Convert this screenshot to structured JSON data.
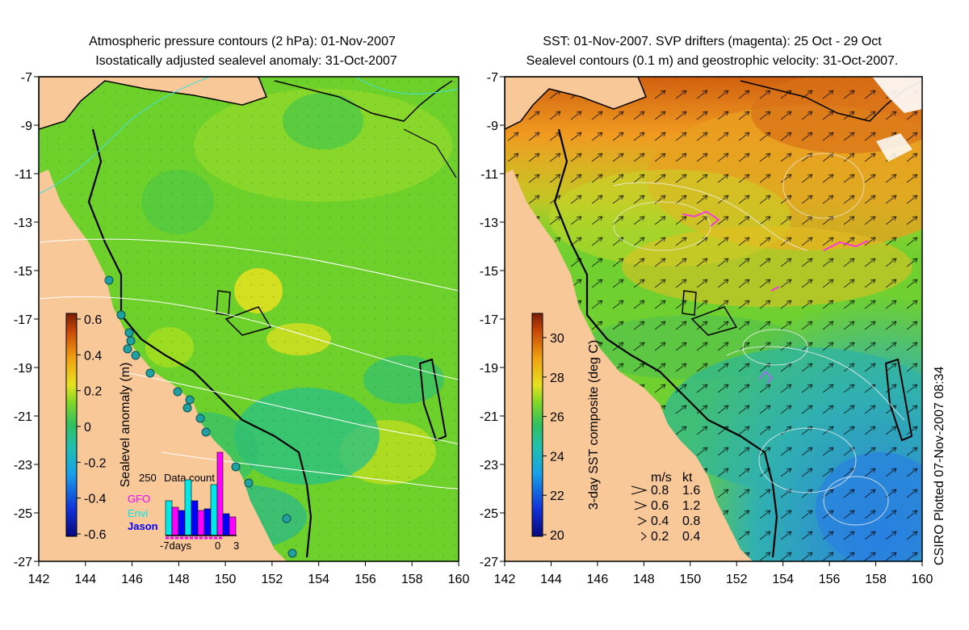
{
  "left_panel": {
    "title_line1": "Atmospheric pressure contours (2 hPa): 01-Nov-2007",
    "title_line2": "Isostatically adjusted sealevel anomaly: 31-Oct-2007",
    "colorbar": {
      "label": "Sealevel anomaly (m)",
      "ticks": [
        "0.6",
        "0.4",
        "0.2",
        "0",
        "-0.2",
        "-0.4",
        "-0.6"
      ],
      "colors": [
        "#08087a",
        "#1030d8",
        "#18a0e8",
        "#20c0b0",
        "#30c060",
        "#60d030",
        "#a8e020",
        "#e8e020",
        "#f0b010",
        "#e07010",
        "#b83808",
        "#7a1c06"
      ]
    },
    "inset": {
      "title": "Data count",
      "y_tick": "250",
      "x_labels": [
        "-7days",
        "0",
        "3"
      ],
      "legend": [
        {
          "name": "GFO",
          "color": "#ff00ff"
        },
        {
          "name": "Envi",
          "color": "#00e8e8"
        },
        {
          "name": "Jason",
          "color": "#0000ff"
        }
      ]
    }
  },
  "right_panel": {
    "title_line1": "SST: 01-Nov-2007. SVP drifters (magenta): 25 Oct - 29 Oct",
    "title_line2": "Sealevel contours (0.1 m) and geostrophic velocity: 31-Oct-2007.",
    "colorbar": {
      "label": "3-day SST composite (deg C)",
      "ticks": [
        "30",
        "28",
        "26",
        "24",
        "22",
        "20"
      ],
      "colors": [
        "#08087a",
        "#1030d8",
        "#18a0e8",
        "#20c0b0",
        "#30c060",
        "#60d030",
        "#a8e020",
        "#e8e020",
        "#f0b010",
        "#e07010",
        "#b83808",
        "#7a1c06"
      ]
    },
    "speed_legend": {
      "header_ms": "m/s",
      "header_kt": "kt",
      "rows": [
        {
          "ms": "0.8",
          "kt": "1.6"
        },
        {
          "ms": "0.6",
          "kt": "1.2"
        },
        {
          "ms": "0.4",
          "kt": "0.8"
        },
        {
          "ms": "0.2",
          "kt": "0.4"
        }
      ]
    },
    "credit": "CSIRO Plotted 07-Nov-2007 08:34"
  },
  "axes": {
    "lat_ticks": [
      "-7",
      "-9",
      "-11",
      "-13",
      "-15",
      "-17",
      "-19",
      "-21",
      "-23",
      "-25",
      "-27"
    ],
    "lon_ticks": [
      "142",
      "144",
      "146",
      "148",
      "150",
      "152",
      "154",
      "156",
      "158",
      "160"
    ]
  },
  "colors": {
    "land": "#f8c898",
    "ocean_green": "#6ed02a",
    "ocean_cyan": "#28c088",
    "sst_orange": "#f09020",
    "sst_blue": "#2a90e0"
  }
}
